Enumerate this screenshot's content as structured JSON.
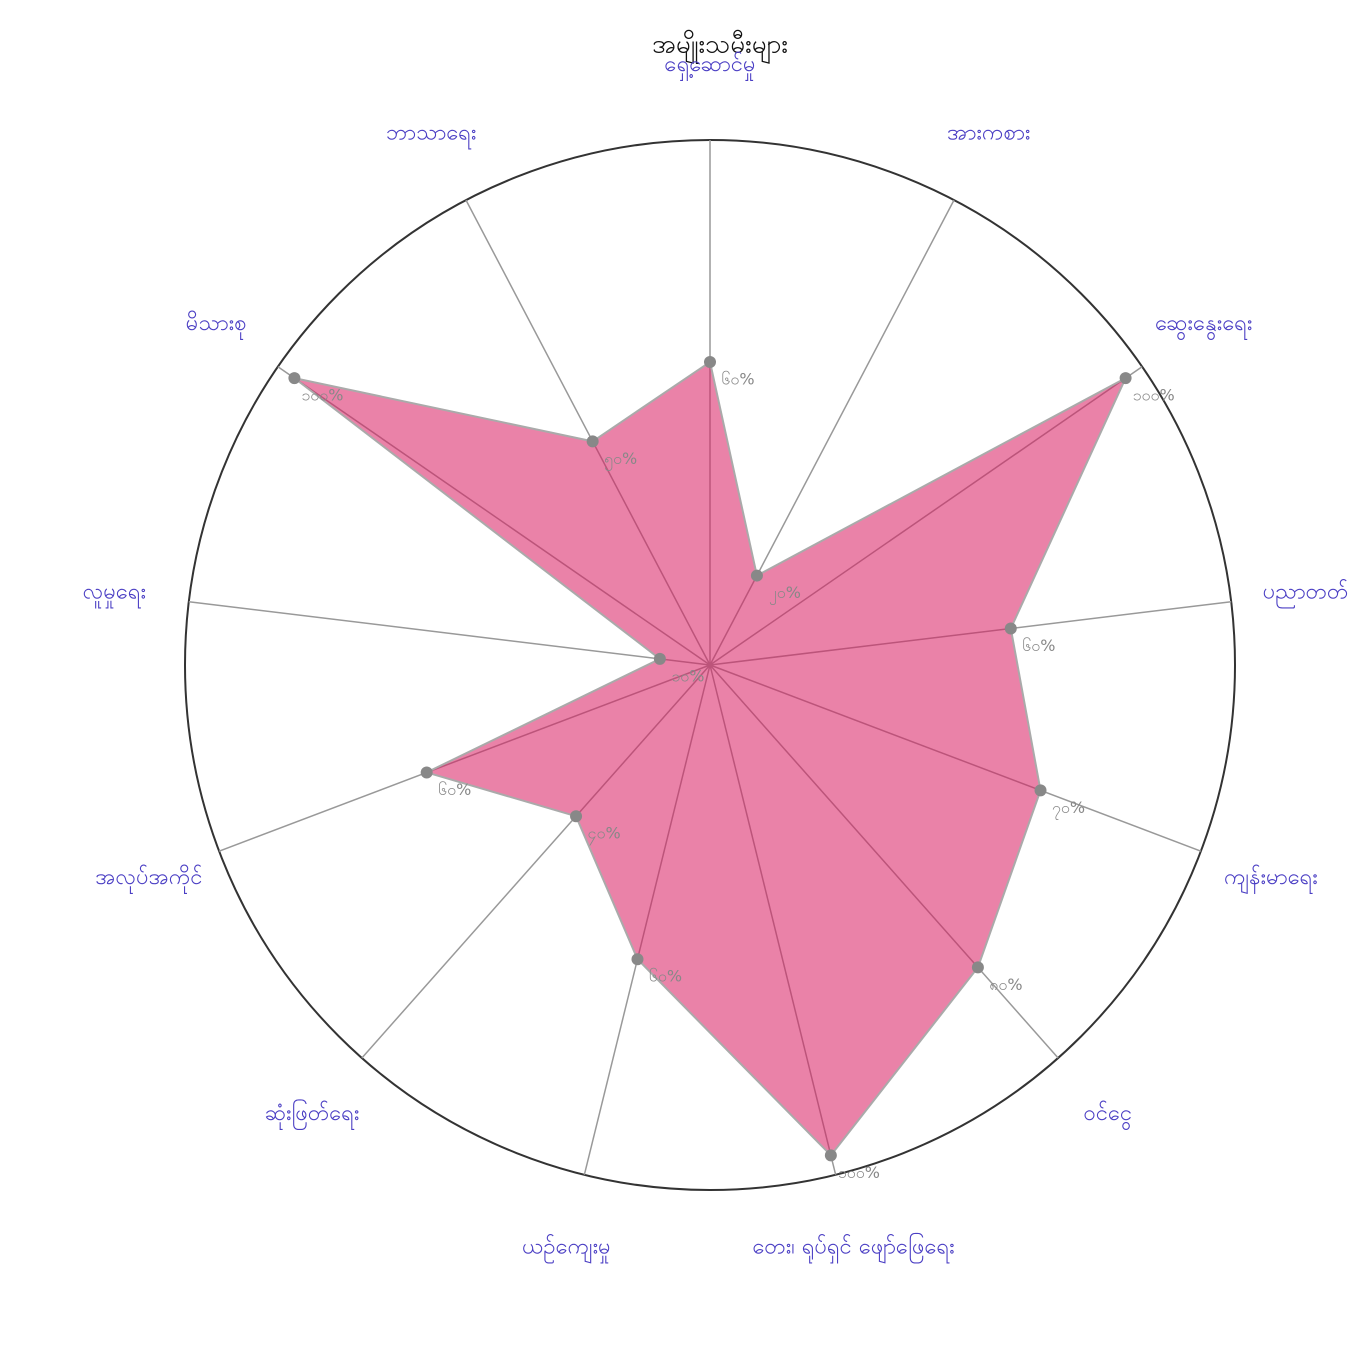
{
  "chart_data": {
    "type": "radar",
    "title": "အမျိုးသမီးများ",
    "categories": [
      "ရှေ့ဆောင်မှု",
      "အားကစား",
      "ဆွေးနွေးရေး",
      "ပညာတတ်",
      "ကျန်းမာရေး",
      "ဝင်ငွေ",
      "တေး၊ ရုပ်ရှင် ဖျော်ဖြေရေး",
      "ယဉ်ကျေးမှု",
      "ဆုံးဖြတ်ရေး",
      "အလုပ်အကိုင်",
      "လူမှုရေး",
      "မိသားစု",
      "ဘာသာရေး"
    ],
    "values": [
      60,
      20,
      100,
      60,
      70,
      80,
      100,
      60,
      40,
      60,
      10,
      100,
      50
    ],
    "value_labels": [
      "၆၀%",
      "၂၀%",
      "၁၀၀%",
      "၆၀%",
      "၇၀%",
      "၈၀%",
      "၁၀၀%",
      "၆၀%",
      "၄၀%",
      "၆၀%",
      "၁၀%",
      "၁၀၀%",
      "၅၀%"
    ],
    "rlim": [
      0,
      100
    ],
    "color": "#d81b60",
    "label_color": "#4b3fc4"
  }
}
